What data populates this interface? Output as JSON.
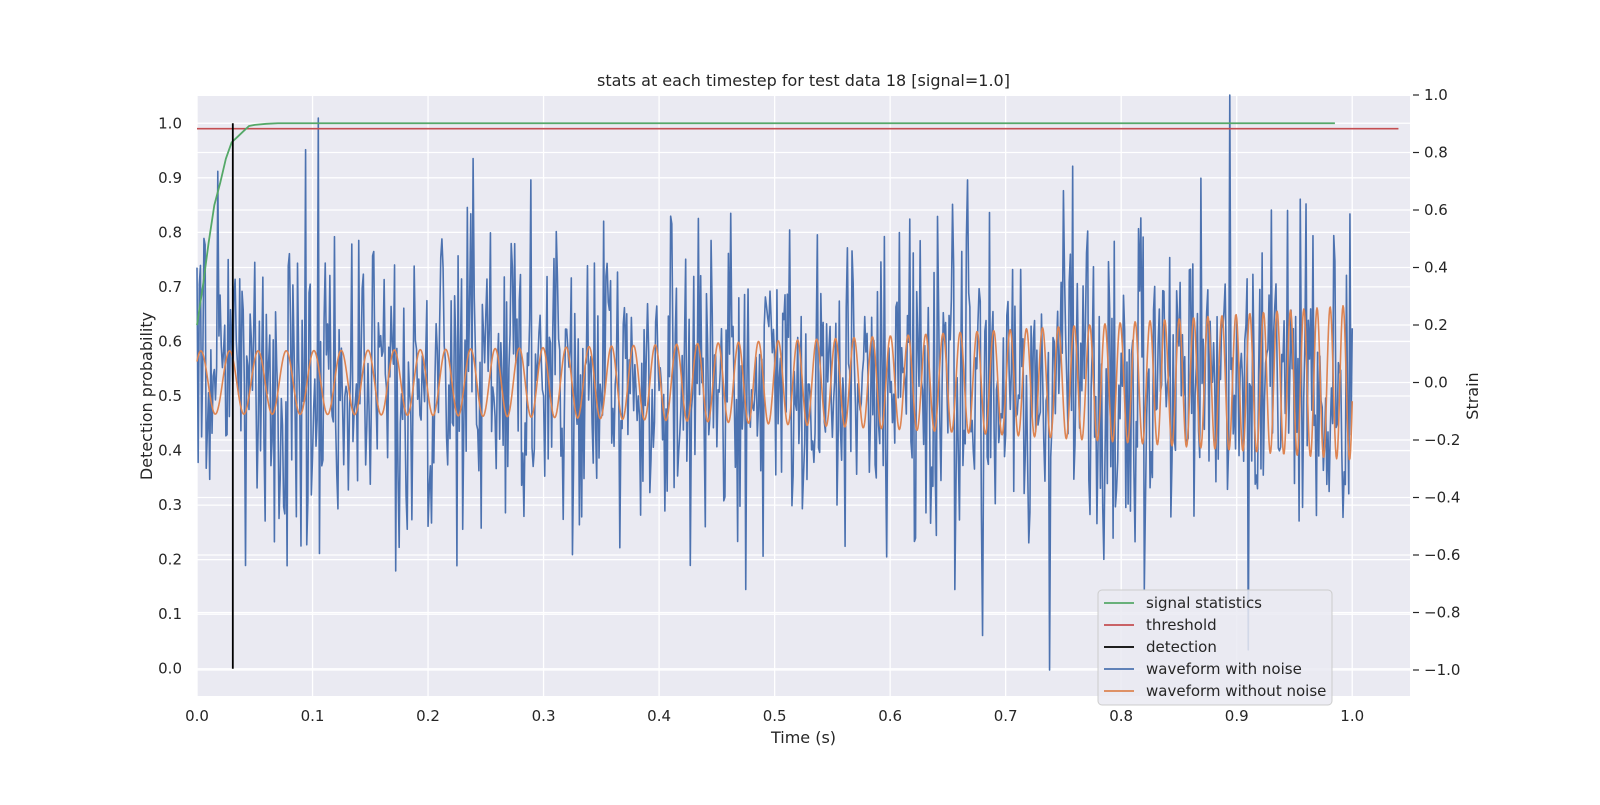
{
  "chart_data": {
    "type": "line",
    "title": "stats at each timestep for test data 18 [signal=1.0]",
    "xlabel": "Time (s)",
    "ylabel": "Detection probability",
    "ylabel_right": "Strain",
    "xlim": [
      0.0,
      1.05
    ],
    "ylim": [
      -0.05,
      1.05
    ],
    "ylim_right": [
      -1.1,
      1.0
    ],
    "x_ticks": [
      "0.0",
      "0.1",
      "0.2",
      "0.3",
      "0.4",
      "0.5",
      "0.6",
      "0.7",
      "0.8",
      "0.9",
      "1.0"
    ],
    "y_ticks": [
      "0.0",
      "0.1",
      "0.2",
      "0.3",
      "0.4",
      "0.5",
      "0.6",
      "0.7",
      "0.8",
      "0.9",
      "1.0"
    ],
    "y_ticks_right": [
      "−1.0",
      "−0.8",
      "−0.6",
      "−0.4",
      "−0.2",
      "0.0",
      "0.2",
      "0.4",
      "0.6",
      "0.8",
      "1.0"
    ],
    "grid": true,
    "legend_position": "lower-right",
    "series": [
      {
        "name": "signal statistics",
        "color": "#55a868",
        "axis": "left",
        "x": [
          0.0,
          0.005,
          0.01,
          0.015,
          0.02,
          0.025,
          0.03,
          0.035,
          0.04,
          0.045,
          0.05,
          0.06,
          0.07,
          0.08,
          0.1,
          0.2,
          0.4,
          0.6,
          0.8,
          0.985
        ],
        "y": [
          0.63,
          0.7,
          0.78,
          0.85,
          0.89,
          0.935,
          0.965,
          0.975,
          0.985,
          0.995,
          0.997,
          0.999,
          1.0,
          1.0,
          1.0,
          1.0,
          1.0,
          1.0,
          1.0,
          1.0
        ]
      },
      {
        "name": "threshold",
        "color": "#c44e52",
        "axis": "left",
        "x": [
          0.0,
          1.04
        ],
        "y": [
          0.99,
          0.99
        ]
      },
      {
        "name": "detection",
        "color": "#000000",
        "axis": "left",
        "x": [
          0.031,
          0.031
        ],
        "y": [
          0.0,
          1.0
        ]
      },
      {
        "name": "waveform with noise",
        "color": "#4c72b0",
        "axis": "right",
        "generated": "noisy strain, ~1000 samples, amplitude roughly ±0.6, peak 1.0 at t≈0.894, minimum −1.0 at t≈0.738",
        "t_range": [
          0.0,
          1.0
        ],
        "amplitude": 0.28,
        "peaks": [
          [
            0.894,
            1.0
          ],
          [
            0.738,
            -1.0
          ],
          [
            0.105,
            0.92
          ],
          [
            0.68,
            -0.88
          ],
          [
            0.91,
            -0.93
          ],
          [
            0.93,
            0.6
          ],
          [
            0.82,
            -0.72
          ],
          [
            0.475,
            -0.72
          ]
        ]
      },
      {
        "name": "waveform without noise",
        "color": "#dd8452",
        "axis": "right",
        "generated": "chirp: amplitude grows 0.11→0.27, frequency grows ~40→90 Hz",
        "t_range": [
          0.0,
          1.0
        ],
        "amp_start": 0.11,
        "amp_end": 0.27,
        "freq_start": 40,
        "freq_end": 90
      }
    ]
  },
  "legend": {
    "items": [
      {
        "label": "signal statistics",
        "color": "#55a868"
      },
      {
        "label": "threshold",
        "color": "#c44e52"
      },
      {
        "label": "detection",
        "color": "#000000"
      },
      {
        "label": "waveform with noise",
        "color": "#4c72b0"
      },
      {
        "label": "waveform without noise",
        "color": "#dd8452"
      }
    ]
  },
  "style": {
    "plot_bg": "#eaeaf2",
    "grid_color": "#ffffff"
  }
}
